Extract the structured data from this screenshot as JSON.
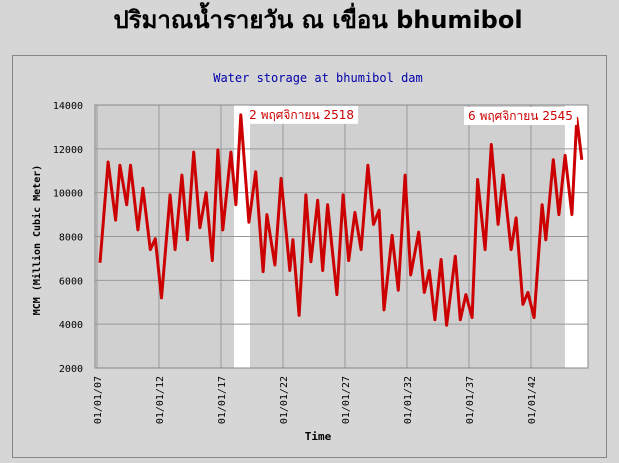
{
  "chart_data": {
    "type": "line",
    "title": "ปริมาณน้ำรายวัน ณ เขื่อน bhumibol",
    "subtitle": "Water storage at bhumibol dam",
    "xlabel": "Time",
    "ylabel": "MCM (Million Cubic Meter)",
    "color": "#cc0000",
    "grid": true,
    "xlim": [
      6.84,
      46.6
    ],
    "ylim": [
      2000,
      14000
    ],
    "yticks": [
      2000,
      4000,
      6000,
      8000,
      10000,
      12000,
      14000
    ],
    "xticks": [
      {
        "value": 7,
        "label": "01/01/07"
      },
      {
        "value": 12,
        "label": "01/01/12"
      },
      {
        "value": 17,
        "label": "01/01/17"
      },
      {
        "value": 22,
        "label": "01/01/22"
      },
      {
        "value": 27,
        "label": "01/01/27"
      },
      {
        "value": 32,
        "label": "01/01/32"
      },
      {
        "value": 37,
        "label": "01/01/37"
      },
      {
        "value": 42,
        "label": "01/01/42"
      }
    ],
    "highlights": [
      {
        "from": 18.05,
        "to": 19.34
      },
      {
        "from": 44.74,
        "to": 46.6
      }
    ],
    "annotations": [
      {
        "text": "2 พฤศจิกายน 2518",
        "x": 18.95,
        "y": 13550
      },
      {
        "text": "6 พฤศจิกายน 2545",
        "x": 36.6,
        "y": 13500
      }
    ],
    "x": [
      7.24,
      7.9,
      8.5,
      8.85,
      9.4,
      9.7,
      10.3,
      10.7,
      11.3,
      11.7,
      12.2,
      12.9,
      13.3,
      13.85,
      14.3,
      14.8,
      15.3,
      15.8,
      16.3,
      16.75,
      17.15,
      17.8,
      18.2,
      18.6,
      19.25,
      19.8,
      20.4,
      20.7,
      21.35,
      21.85,
      22.55,
      22.8,
      23.3,
      23.85,
      24.25,
      24.8,
      25.2,
      25.6,
      26.35,
      26.85,
      27.3,
      27.8,
      28.3,
      28.85,
      29.3,
      29.75,
      30.15,
      30.8,
      31.3,
      31.85,
      32.3,
      32.95,
      33.4,
      33.8,
      34.25,
      34.75,
      35.2,
      35.9,
      36.3,
      36.75,
      37.25,
      37.7,
      38.3,
      38.8,
      39.35,
      39.75,
      40.4,
      40.8,
      41.35,
      41.75,
      42.25,
      42.9,
      43.2,
      43.8,
      44.25,
      44.75,
      45.3,
      45.7,
      46.1
    ],
    "values": [
      6800,
      11400,
      8750,
      11250,
      9450,
      11250,
      8300,
      10200,
      7400,
      7900,
      5200,
      9900,
      7400,
      10800,
      7850,
      11850,
      8400,
      10000,
      6900,
      11950,
      8300,
      11850,
      9450,
      13550,
      8650,
      10950,
      6400,
      9000,
      6700,
      10650,
      6450,
      7850,
      4400,
      9900,
      6850,
      9650,
      6450,
      9450,
      5350,
      9900,
      6900,
      9100,
      7400,
      11250,
      8550,
      9200,
      4650,
      8050,
      5550,
      10800,
      6250,
      8200,
      5450,
      6450,
      4200,
      6950,
      3950,
      7100,
      4200,
      5350,
      4300,
      10600,
      7400,
      12200,
      8550,
      10800,
      7400,
      8850,
      4900,
      5450,
      4300,
      9450,
      7850,
      11500,
      9000,
      11700,
      9000,
      13400,
      11500
    ]
  }
}
